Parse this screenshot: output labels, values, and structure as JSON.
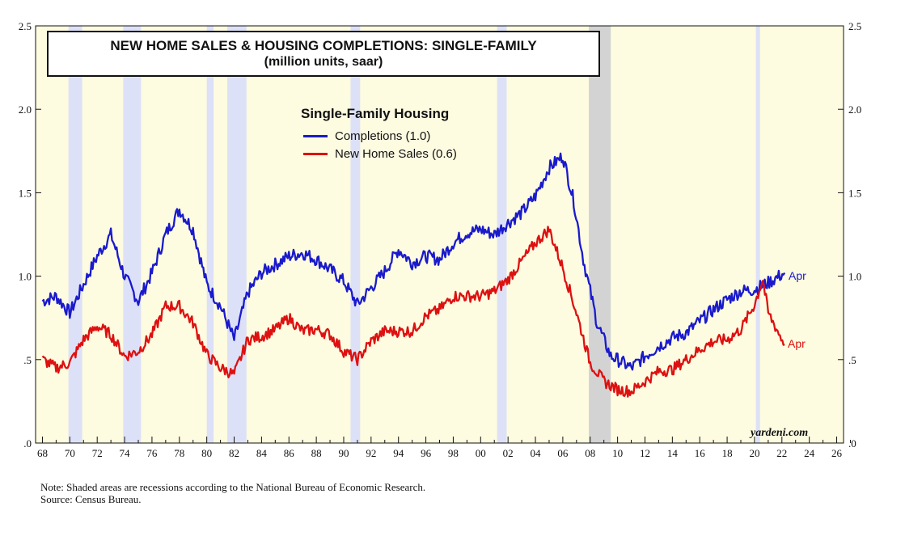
{
  "chart_data": {
    "type": "line",
    "title": "NEW HOME SALES & HOUSING COMPLETIONS: SINGLE-FAMILY",
    "subtitle": "(million units, saar)",
    "legend": {
      "title": "Single-Family Housing",
      "placement": "top-center",
      "entries": [
        "Completions (1.0)",
        "New Home Sales (0.6)"
      ]
    },
    "x_range": [
      1967.5,
      2026.5
    ],
    "ylim": [
      0,
      2.5
    ],
    "x_ticks": [
      68,
      70,
      72,
      74,
      76,
      78,
      80,
      82,
      84,
      86,
      88,
      90,
      92,
      94,
      96,
      98,
      "00",
      "02",
      "04",
      "06",
      "08",
      10,
      12,
      14,
      16,
      18,
      20,
      22,
      24,
      26
    ],
    "y_ticks_left": [
      ".0",
      ".5",
      "1.0",
      "1.5",
      "2.0",
      "2.5"
    ],
    "y_ticks_right": [
      ".0",
      ".5",
      "1.0",
      "1.5",
      "2.0",
      "2.5"
    ],
    "recessions": [
      [
        1969.9,
        1970.9
      ],
      [
        1973.9,
        1975.2
      ],
      [
        1980.0,
        1980.5
      ],
      [
        1981.5,
        1982.9
      ],
      [
        1990.5,
        1991.2
      ],
      [
        2001.2,
        2001.9
      ],
      [
        2007.9,
        2009.5
      ],
      [
        2020.1,
        2020.4
      ]
    ],
    "series": [
      {
        "name": "Completions (1.0)",
        "color": "#1a1acc",
        "end_label": "Apr",
        "points": [
          [
            1968,
            0.85
          ],
          [
            1969,
            0.88
          ],
          [
            1970,
            0.78
          ],
          [
            1971,
            0.95
          ],
          [
            1972,
            1.12
          ],
          [
            1973,
            1.25
          ],
          [
            1974,
            1.0
          ],
          [
            1975,
            0.85
          ],
          [
            1976,
            1.02
          ],
          [
            1977,
            1.25
          ],
          [
            1978,
            1.4
          ],
          [
            1979,
            1.28
          ],
          [
            1980,
            0.95
          ],
          [
            1981,
            0.82
          ],
          [
            1982,
            0.62
          ],
          [
            1983,
            0.9
          ],
          [
            1984,
            1.02
          ],
          [
            1985,
            1.07
          ],
          [
            1986,
            1.12
          ],
          [
            1987,
            1.14
          ],
          [
            1988,
            1.1
          ],
          [
            1989,
            1.04
          ],
          [
            1990,
            0.97
          ],
          [
            1991,
            0.83
          ],
          [
            1992,
            0.93
          ],
          [
            1993,
            1.03
          ],
          [
            1994,
            1.16
          ],
          [
            1995,
            1.08
          ],
          [
            1996,
            1.12
          ],
          [
            1997,
            1.1
          ],
          [
            1998,
            1.2
          ],
          [
            1999,
            1.26
          ],
          [
            2000,
            1.28
          ],
          [
            2001,
            1.25
          ],
          [
            2002,
            1.32
          ],
          [
            2003,
            1.38
          ],
          [
            2004,
            1.48
          ],
          [
            2005,
            1.65
          ],
          [
            2006,
            1.72
          ],
          [
            2006.8,
            1.45
          ],
          [
            2007.5,
            1.1
          ],
          [
            2008.5,
            0.72
          ],
          [
            2009.5,
            0.52
          ],
          [
            2010,
            0.5
          ],
          [
            2011,
            0.45
          ],
          [
            2012,
            0.52
          ],
          [
            2013,
            0.58
          ],
          [
            2014,
            0.63
          ],
          [
            2015,
            0.66
          ],
          [
            2016,
            0.73
          ],
          [
            2017,
            0.8
          ],
          [
            2018,
            0.86
          ],
          [
            2019,
            0.91
          ],
          [
            2020,
            0.92
          ],
          [
            2021,
            0.96
          ],
          [
            2022.2,
            1.02
          ]
        ]
      },
      {
        "name": "New Home Sales (0.6)",
        "color": "#dd1111",
        "end_label": "Apr",
        "points": [
          [
            1968,
            0.5
          ],
          [
            1969,
            0.45
          ],
          [
            1970,
            0.48
          ],
          [
            1971,
            0.62
          ],
          [
            1972,
            0.7
          ],
          [
            1973,
            0.65
          ],
          [
            1974,
            0.52
          ],
          [
            1975,
            0.55
          ],
          [
            1976,
            0.65
          ],
          [
            1977,
            0.82
          ],
          [
            1978,
            0.82
          ],
          [
            1979,
            0.72
          ],
          [
            1980,
            0.53
          ],
          [
            1981,
            0.45
          ],
          [
            1982,
            0.41
          ],
          [
            1983,
            0.62
          ],
          [
            1984,
            0.64
          ],
          [
            1985,
            0.68
          ],
          [
            1986,
            0.75
          ],
          [
            1987,
            0.67
          ],
          [
            1988,
            0.68
          ],
          [
            1989,
            0.65
          ],
          [
            1990,
            0.55
          ],
          [
            1991,
            0.5
          ],
          [
            1992,
            0.61
          ],
          [
            1993,
            0.67
          ],
          [
            1994,
            0.67
          ],
          [
            1995,
            0.67
          ],
          [
            1996,
            0.76
          ],
          [
            1997,
            0.8
          ],
          [
            1998,
            0.88
          ],
          [
            1999,
            0.88
          ],
          [
            2000,
            0.88
          ],
          [
            2001,
            0.91
          ],
          [
            2002,
            0.98
          ],
          [
            2003,
            1.09
          ],
          [
            2004,
            1.2
          ],
          [
            2005,
            1.28
          ],
          [
            2006,
            1.05
          ],
          [
            2007,
            0.78
          ],
          [
            2008,
            0.48
          ],
          [
            2009,
            0.37
          ],
          [
            2010,
            0.32
          ],
          [
            2011,
            0.31
          ],
          [
            2012,
            0.37
          ],
          [
            2013,
            0.43
          ],
          [
            2014,
            0.44
          ],
          [
            2015,
            0.5
          ],
          [
            2016,
            0.56
          ],
          [
            2017,
            0.61
          ],
          [
            2018,
            0.62
          ],
          [
            2019,
            0.68
          ],
          [
            2020,
            0.83
          ],
          [
            2020.6,
            0.98
          ],
          [
            2021,
            0.78
          ],
          [
            2022.2,
            0.59
          ]
        ]
      }
    ],
    "watermark": "yardeni.com",
    "note": "Note: Shaded areas are recessions according to the National Bureau of Economic Research.",
    "source": "Source: Census Bureau."
  },
  "colors": {
    "plot_background": "#fdfbe0",
    "recession": "#dde1f7",
    "recession_gfc": "#d3d3d3",
    "axis": "#111111"
  }
}
